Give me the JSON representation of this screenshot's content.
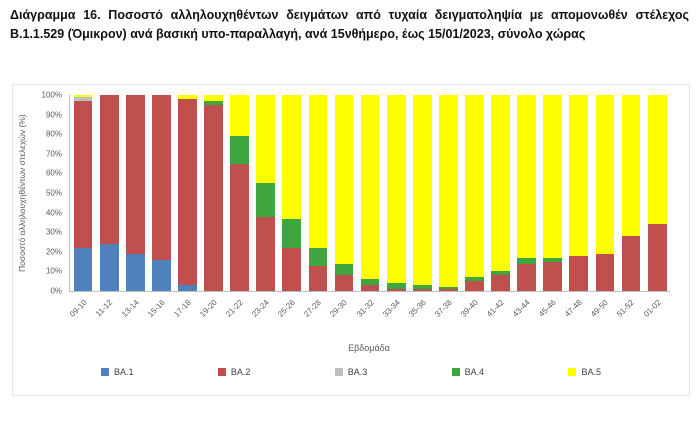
{
  "title": {
    "text": "Διάγραμμα 16. Ποσοστό αλληλουχηθέντων δειγμάτων από τυχαία δειγματοληψία με απομονωθέν στέλεχος B.1.1.529 (Όμικρον) ανά βασική υπο-παραλλαγή, ανά 15νθήμερο, έως 15/01/2023, σύνολο χώρας"
  },
  "chart_data": {
    "type": "bar",
    "stacked": true,
    "percent": true,
    "xlabel": "Εβδομάδα",
    "ylabel": "Ποσοστό αλληλουχηθέντων στελεχών (%)",
    "ylim": [
      0,
      100
    ],
    "ytick_step": 10,
    "ytick_suffix": "%",
    "legend_position": "bottom",
    "grid": false,
    "categories": [
      "09-10",
      "11-12",
      "13-14",
      "15-16",
      "17-18",
      "19-20",
      "21-22",
      "23-24",
      "25-26",
      "27-28",
      "29-30",
      "31-32",
      "33-34",
      "35-36",
      "37-38",
      "39-40",
      "41-42",
      "43-44",
      "45-46",
      "47-48",
      "49-50",
      "51-52",
      "01-02"
    ],
    "series": [
      {
        "name": "BA.1",
        "color": "#4F81BD",
        "values": [
          22,
          24,
          19,
          16,
          3,
          0,
          0,
          0,
          0,
          0,
          0,
          0,
          0,
          0,
          0,
          0,
          0,
          0,
          0,
          0,
          0,
          0,
          0
        ]
      },
      {
        "name": "BA.2",
        "color": "#C0504D",
        "values": [
          75,
          76,
          81,
          84,
          95,
          95,
          65,
          38,
          22,
          13,
          8,
          3,
          1,
          1,
          1,
          5,
          8,
          14,
          15,
          18,
          19,
          28,
          34
        ]
      },
      {
        "name": "BA.3",
        "color": "#BFBFBF",
        "values": [
          2,
          0,
          0,
          0,
          0,
          0,
          0,
          0,
          0,
          0,
          0,
          0,
          0,
          0,
          0,
          0,
          0,
          0,
          0,
          0,
          0,
          0,
          0
        ]
      },
      {
        "name": "BA.4",
        "color": "#3FA53F",
        "values": [
          0,
          0,
          0,
          0,
          0,
          2,
          14,
          17,
          15,
          9,
          6,
          3,
          3,
          2,
          1,
          2,
          2,
          3,
          2,
          0,
          0,
          0,
          0
        ]
      },
      {
        "name": "BA.5",
        "color": "#FFFF00",
        "values": [
          1,
          0,
          0,
          0,
          2,
          3,
          21,
          45,
          63,
          78,
          86,
          94,
          96,
          97,
          98,
          93,
          90,
          83,
          83,
          82,
          81,
          72,
          66
        ]
      }
    ]
  }
}
